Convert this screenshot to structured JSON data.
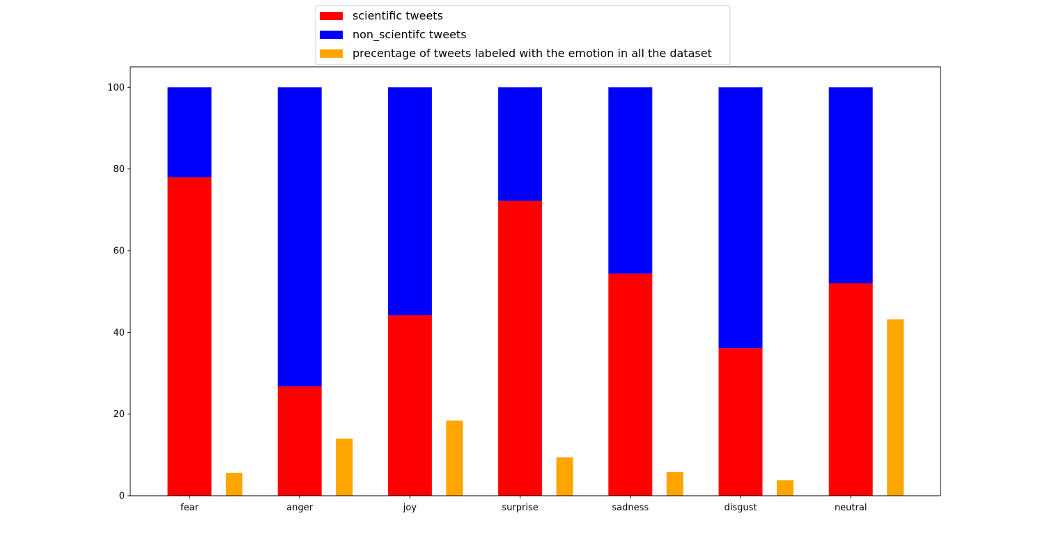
{
  "chart_data": {
    "type": "bar",
    "categories": [
      "fear",
      "anger",
      "joy",
      "surprise",
      "sadness",
      "disgust",
      "neutral"
    ],
    "series": [
      {
        "name": "scientific tweets",
        "color": "#ff0000",
        "stacked": true,
        "values": [
          78.0,
          26.8,
          44.2,
          72.2,
          54.4,
          36.1,
          52.0
        ]
      },
      {
        "name": "non_scientifc tweets",
        "color": "#0000ff",
        "stacked": true,
        "values": [
          22.0,
          73.2,
          55.8,
          27.8,
          45.6,
          63.9,
          48.0
        ]
      },
      {
        "name": "precentage of tweets labeled with the emotion in all the dataset",
        "color": "#ffa500",
        "stacked": false,
        "values": [
          5.6,
          14.0,
          18.4,
          9.4,
          5.8,
          3.8,
          43.2
        ]
      }
    ],
    "title": "",
    "xlabel": "",
    "ylabel": "",
    "ylim": [
      0,
      105
    ],
    "yticks": [
      0,
      20,
      40,
      60,
      80,
      100
    ],
    "legend_position": "top-center, outside above axes",
    "grid": false
  }
}
